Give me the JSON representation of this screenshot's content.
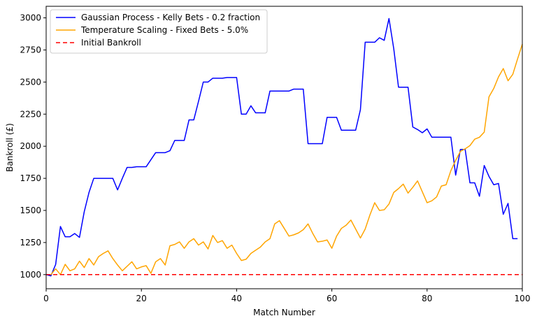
{
  "chart_data": {
    "type": "line",
    "xlabel": "Match Number",
    "ylabel": "Bankroll (£)",
    "xlim": [
      0,
      100
    ],
    "ylim": [
      890,
      3090
    ],
    "xticks": [
      0,
      20,
      40,
      60,
      80,
      100
    ],
    "yticks": [
      1000,
      1250,
      1500,
      1750,
      2000,
      2250,
      2500,
      2750,
      3000
    ],
    "grid": false,
    "legend_position": "top-left",
    "series": [
      {
        "name": "Gaussian Process - Kelly Bets - 0.2 fraction",
        "color": "#0000ff",
        "style": "solid",
        "x": [
          0,
          1,
          2,
          3,
          4,
          5,
          6,
          7,
          8,
          9,
          10,
          11,
          12,
          13,
          14,
          15,
          16,
          17,
          18,
          19,
          20,
          21,
          22,
          23,
          24,
          25,
          26,
          27,
          28,
          29,
          30,
          31,
          32,
          33,
          34,
          35,
          36,
          37,
          38,
          39,
          40,
          41,
          42,
          43,
          44,
          45,
          46,
          47,
          48,
          49,
          50,
          51,
          52,
          53,
          54,
          55,
          56,
          57,
          58,
          59,
          60,
          61,
          62,
          63,
          64,
          65,
          66,
          67,
          68,
          69,
          70,
          71,
          72,
          73,
          74,
          75,
          76,
          77,
          78,
          79,
          80,
          81,
          82,
          83,
          84,
          85,
          86,
          87,
          88,
          89,
          90,
          91,
          92,
          93,
          94,
          95,
          96,
          97,
          98,
          99
        ],
        "y": [
          1000,
          990,
          1080,
          1375,
          1295,
          1295,
          1320,
          1290,
          1490,
          1640,
          1750,
          1750,
          1750,
          1750,
          1750,
          1660,
          1750,
          1835,
          1835,
          1840,
          1840,
          1840,
          1895,
          1950,
          1950,
          1950,
          1965,
          2045,
          2045,
          2045,
          2205,
          2205,
          2350,
          2500,
          2500,
          2530,
          2530,
          2530,
          2535,
          2535,
          2535,
          2250,
          2250,
          2315,
          2260,
          2260,
          2260,
          2430,
          2430,
          2430,
          2430,
          2430,
          2445,
          2445,
          2445,
          2020,
          2020,
          2020,
          2020,
          2225,
          2225,
          2225,
          2125,
          2125,
          2125,
          2125,
          2285,
          2810,
          2810,
          2810,
          2845,
          2825,
          2995,
          2760,
          2460,
          2460,
          2460,
          2150,
          2130,
          2105,
          2135,
          2070,
          2070,
          2070,
          2070,
          2070,
          1775,
          1975,
          1975,
          1715,
          1715,
          1610,
          1850,
          1765,
          1700,
          1710,
          1470,
          1555,
          1280,
          1280
        ]
      },
      {
        "name": "Temperature Scaling - Fixed Bets - 5.0%",
        "color": "#ffa500",
        "style": "solid",
        "x": [
          0,
          1,
          2,
          3,
          4,
          5,
          6,
          7,
          8,
          9,
          10,
          11,
          12,
          13,
          14,
          15,
          16,
          17,
          18,
          19,
          20,
          21,
          22,
          23,
          24,
          25,
          26,
          27,
          28,
          29,
          30,
          31,
          32,
          33,
          34,
          35,
          36,
          37,
          38,
          39,
          40,
          41,
          42,
          43,
          44,
          45,
          46,
          47,
          48,
          49,
          50,
          51,
          52,
          53,
          54,
          55,
          56,
          57,
          58,
          59,
          60,
          61,
          62,
          63,
          64,
          65,
          66,
          67,
          68,
          69,
          70,
          71,
          72,
          73,
          74,
          75,
          76,
          77,
          78,
          79,
          80,
          81,
          82,
          83,
          84,
          85,
          86,
          87,
          88,
          89,
          90,
          91,
          92,
          93,
          94,
          95,
          96,
          97,
          98,
          99,
          100
        ],
        "y": [
          1000,
          1000,
          1045,
          1000,
          1080,
          1030,
          1045,
          1105,
          1055,
          1125,
          1075,
          1140,
          1165,
          1185,
          1125,
          1075,
          1030,
          1065,
          1100,
          1045,
          1060,
          1070,
          1010,
          1100,
          1125,
          1075,
          1225,
          1235,
          1255,
          1205,
          1255,
          1280,
          1230,
          1255,
          1200,
          1305,
          1250,
          1265,
          1205,
          1230,
          1165,
          1110,
          1120,
          1165,
          1190,
          1215,
          1255,
          1280,
          1395,
          1420,
          1360,
          1300,
          1310,
          1325,
          1350,
          1395,
          1320,
          1255,
          1260,
          1270,
          1205,
          1300,
          1360,
          1385,
          1425,
          1355,
          1285,
          1355,
          1465,
          1560,
          1500,
          1505,
          1550,
          1640,
          1670,
          1705,
          1635,
          1680,
          1730,
          1645,
          1560,
          1575,
          1605,
          1690,
          1700,
          1810,
          1890,
          1960,
          1980,
          2005,
          2055,
          2070,
          2110,
          2385,
          2450,
          2540,
          2605,
          2510,
          2560,
          2680,
          2795
        ]
      },
      {
        "name": "Initial Bankroll",
        "color": "#ff0000",
        "style": "dashed",
        "x": [
          0,
          100
        ],
        "y": [
          1000,
          1000
        ]
      }
    ]
  }
}
